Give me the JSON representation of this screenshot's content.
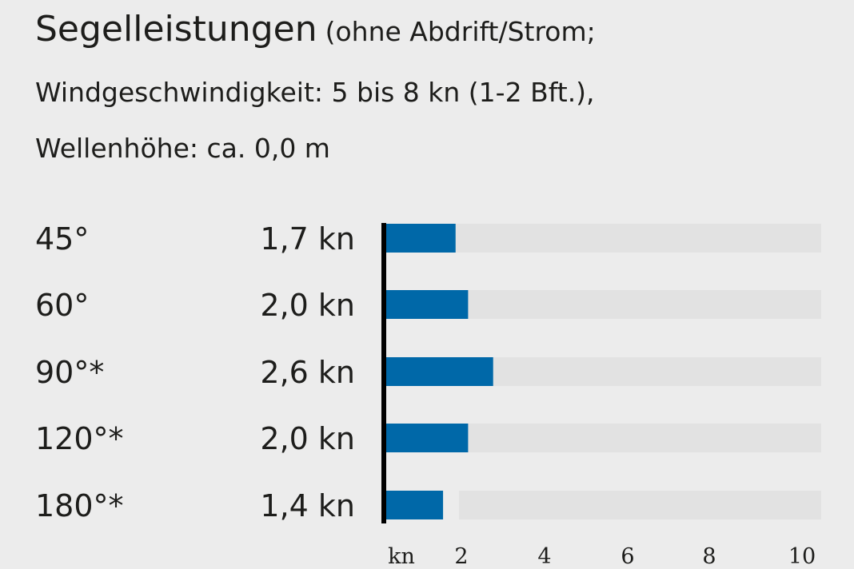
{
  "title": {
    "main": "Segelleistungen",
    "sub1": "(ohne Abdrift/Strom;",
    "sub2": "Windgeschwindigkeit: 5 bis 8 kn (1-2 Bft.),",
    "sub3": "Wellenhöhe: ca. 0,0 m"
  },
  "chart_data": {
    "type": "bar",
    "orientation": "horizontal",
    "categories": [
      "45°",
      "60°",
      "90°*",
      "120°*",
      "180°*"
    ],
    "values": [
      1.7,
      2.0,
      2.6,
      2.0,
      1.4
    ],
    "value_labels": [
      "1,7 kn",
      "2,0 kn",
      "2,6 kn",
      "2,0 kn",
      "1,4 kn"
    ],
    "xlim": [
      0,
      10
    ],
    "x_unit_label": "kn",
    "x_ticks": [
      2,
      4,
      6,
      8,
      10
    ],
    "x_tick_labels": [
      "2",
      "4",
      "6",
      "8",
      "10"
    ],
    "colors": {
      "bar": "#0068a8",
      "track": "#e2e2e2",
      "axis": "#000000",
      "background": "#ececec"
    }
  }
}
